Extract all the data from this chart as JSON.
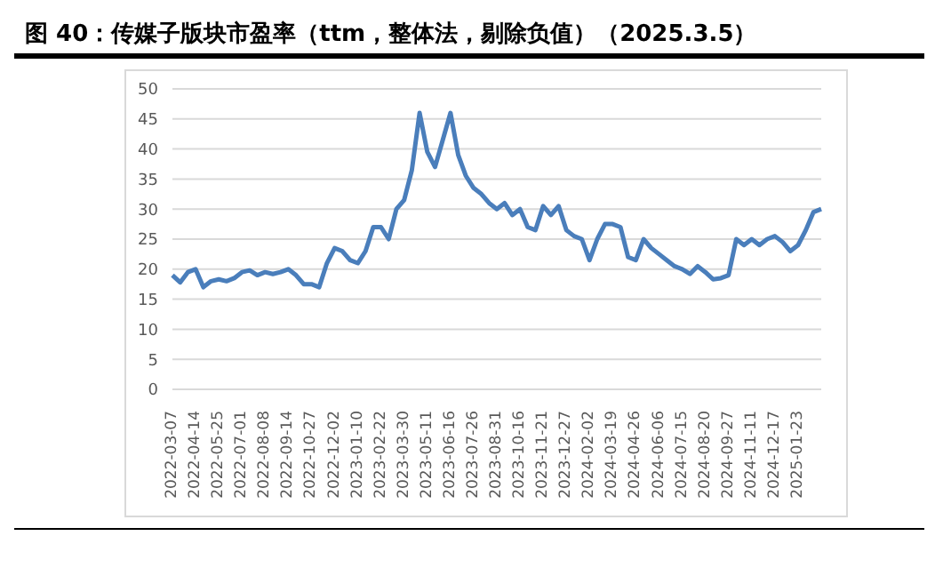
{
  "chart_data": {
    "type": "line",
    "title": "图 40：传媒子版块市盈率（ttm，整体法，剔除负值）（2025.3.5）",
    "categories": [
      "2022-03-07",
      null,
      null,
      "2022-04-14",
      null,
      null,
      "2022-05-25",
      null,
      null,
      "2022-07-01",
      null,
      null,
      "2022-08-08",
      null,
      null,
      "2022-09-14",
      null,
      null,
      "2022-10-27",
      null,
      null,
      "2022-12-02",
      null,
      null,
      "2023-01-10",
      null,
      null,
      "2023-02-22",
      null,
      null,
      "2023-03-30",
      null,
      null,
      "2023-05-11",
      null,
      null,
      "2023-06-16",
      null,
      null,
      "2023-07-26",
      null,
      null,
      "2023-08-31",
      null,
      null,
      "2023-10-16",
      null,
      null,
      "2023-11-21",
      null,
      null,
      "2023-12-27",
      null,
      null,
      "2024-02-02",
      null,
      null,
      "2024-03-19",
      null,
      null,
      "2024-04-26",
      null,
      null,
      "2024-06-06",
      null,
      null,
      "2024-07-15",
      null,
      null,
      "2024-08-20",
      null,
      null,
      "2024-09-27",
      null,
      null,
      "2024-11-11",
      null,
      null,
      "2024-12-17",
      null,
      null,
      "2025-01-23",
      null,
      null,
      null
    ],
    "series": [
      {
        "color": "#4a7ebb",
        "values": [
          19,
          17.8,
          19.5,
          20,
          17,
          18,
          18.3,
          18,
          18.5,
          19.5,
          19.8,
          19,
          19.5,
          19.2,
          19.5,
          20,
          19,
          17.5,
          17.5,
          17,
          21,
          23.5,
          23,
          21.5,
          21,
          23,
          27,
          27,
          25,
          30,
          31.5,
          36.5,
          46,
          39.5,
          37,
          41.5,
          46,
          39,
          35.5,
          33.5,
          32.5,
          31,
          30,
          31,
          29,
          30,
          27,
          26.5,
          30.5,
          29,
          30.5,
          26.5,
          25.5,
          25,
          21.5,
          25,
          27.5,
          27.5,
          27,
          22,
          21.5,
          25,
          23.5,
          22.5,
          21.5,
          20.5,
          20,
          19.2,
          20.5,
          19.5,
          18.3,
          18.5,
          19,
          25,
          24,
          25,
          24,
          25,
          25.5,
          24.5,
          23,
          24,
          26.5,
          29.5,
          30
        ]
      }
    ],
    "ylim": [
      0,
      50
    ],
    "yticks": [
      0,
      5,
      10,
      15,
      20,
      25,
      30,
      35,
      40,
      45,
      50
    ],
    "grid": "y",
    "legend": false,
    "marker": "none",
    "line_style": "solid"
  }
}
